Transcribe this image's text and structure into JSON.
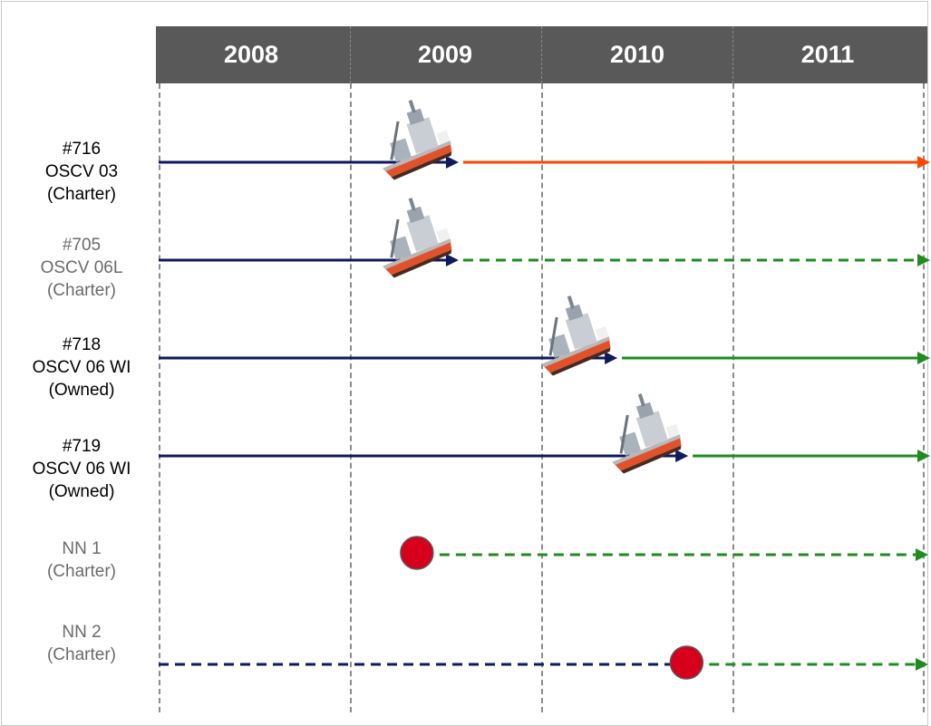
{
  "years": [
    "2008",
    "2009",
    "2010",
    "2011"
  ],
  "colors": {
    "header_bg": "#595959",
    "header_text": "#ffffff",
    "pre_delivery_arrow": "#0d1a5c",
    "active_charter": "#ff4500",
    "planned_charter": "#1e8c1e",
    "owned": "#1e8c1e",
    "milestone_dot": "#d6001c",
    "grey_text": "#6b6b6b",
    "black_text": "#000000"
  },
  "vessels": [
    {
      "id": "v716",
      "lines": [
        "#716",
        "OSCV 03",
        "(Charter)"
      ],
      "text_color": "black",
      "marker": "ship-icon",
      "before_style": "solid",
      "after_style": "solid",
      "after_color": "active_charter",
      "delivery_year": 2009.45
    },
    {
      "id": "v705",
      "lines": [
        "#705",
        "OSCV 06L",
        "(Charter)"
      ],
      "text_color": "grey",
      "marker": "ship-icon",
      "before_style": "solid",
      "after_style": "dashed",
      "after_color": "planned_charter",
      "delivery_year": 2009.45
    },
    {
      "id": "v718",
      "lines": [
        "#718",
        "OSCV 06 WI",
        "(Owned)"
      ],
      "text_color": "black",
      "marker": "ship-icon",
      "before_style": "solid",
      "after_style": "solid",
      "after_color": "owned",
      "delivery_year": 2010.28
    },
    {
      "id": "v719",
      "lines": [
        "#719",
        "OSCV 06 WI",
        "(Owned)"
      ],
      "text_color": "black",
      "marker": "ship-icon",
      "before_style": "solid",
      "after_style": "solid",
      "after_color": "owned",
      "delivery_year": 2010.65
    },
    {
      "id": "nn1",
      "lines": [
        "NN 1",
        "(Charter)"
      ],
      "text_color": "grey",
      "marker": "milestone-dot",
      "before_style": "none",
      "after_style": "dashed",
      "after_color": "planned_charter",
      "delivery_year": 2009.35
    },
    {
      "id": "nn2",
      "lines": [
        "NN 2",
        "(Charter)"
      ],
      "text_color": "grey",
      "marker": "milestone-dot",
      "before_style": "dashed",
      "after_style": "dashed",
      "after_color": "planned_charter",
      "delivery_year": 2010.76
    }
  ]
}
